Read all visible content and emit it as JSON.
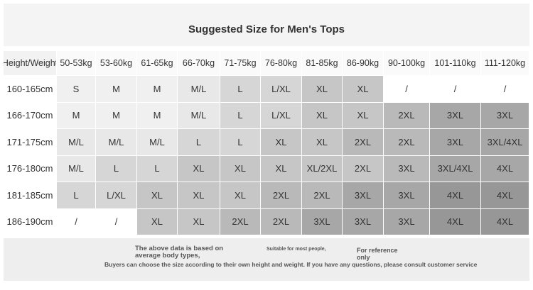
{
  "header": {
    "title": "Suggested Size for Men's Tops"
  },
  "table": {
    "columns": [
      "Height/Weight",
      "50-53kg",
      "53-60kg",
      "61-65kg",
      "66-70kg",
      "71-75kg",
      "76-80kg",
      "81-85kg",
      "86-90kg",
      "90-100kg",
      "101-110kg",
      "111-120kg"
    ],
    "rows": [
      [
        "160-165cm",
        "S",
        "M",
        "M",
        "M/L",
        "L",
        "L/XL",
        "XL",
        "XL",
        "/",
        "/",
        "/"
      ],
      [
        "166-170cm",
        "M",
        "M",
        "M",
        "M/L",
        "L",
        "L/XL",
        "XL",
        "XL",
        "2XL",
        "3XL",
        "3XL"
      ],
      [
        "171-175cm",
        "M/L",
        "M/L",
        "M/L",
        "L",
        "L",
        "XL",
        "XL",
        "2XL",
        "2XL",
        "3XL",
        "3XL/4XL"
      ],
      [
        "176-180cm",
        "M/L",
        "L",
        "L",
        "XL",
        "XL",
        "XL",
        "XL/2XL",
        "2XL",
        "3XL",
        "3XL/4XL",
        "4XL"
      ],
      [
        "181-185cm",
        "L",
        "L/XL",
        "XL",
        "XL",
        "XL",
        "2XL",
        "2XL",
        "3XL",
        "3XL",
        "4XL",
        "4XL"
      ],
      [
        "186-190cm",
        "/",
        "/",
        "XL",
        "XL",
        "2XL",
        "2XL",
        "3XL",
        "3XL",
        "3XL",
        "4XL",
        "4XL"
      ]
    ]
  },
  "footer": {
    "note1": "The above data is based on average body types,",
    "note2": "Suitable for most people,",
    "note3": "For reference only",
    "note4": "Buyers can choose the size according to their own height and weight. If you have any questions, please consult customer service"
  }
}
